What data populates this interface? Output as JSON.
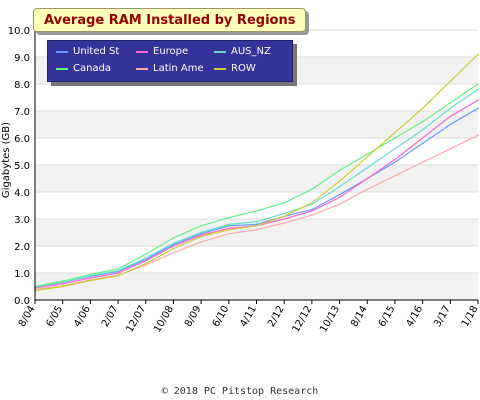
{
  "chart_data": {
    "type": "line",
    "title": "Average RAM Installed by Regions",
    "xlabel": "",
    "ylabel": "Gigabytes (GB)",
    "ylim": [
      0,
      10
    ],
    "y_ticks": [
      "0.0",
      "1.0",
      "2.0",
      "3.0",
      "4.0",
      "5.0",
      "6.0",
      "7.0",
      "8.0",
      "9.0",
      "10.0"
    ],
    "x_ticks": [
      "8/04",
      "6/05",
      "4/06",
      "2/07",
      "12/07",
      "10/08",
      "8/09",
      "6/10",
      "4/11",
      "2/12",
      "12/12",
      "10/13",
      "8/14",
      "6/15",
      "4/16",
      "3/17",
      "1/18"
    ],
    "grid": "horizontal",
    "legend_position": "top-left",
    "colors": {
      "plot_band": "#f2f2f2",
      "grid": "#dddddd",
      "axis": "#000000",
      "title_bg": "#ffffbb",
      "title_text": "#990000",
      "legend_bg": "#333399"
    },
    "series": [
      {
        "name": "United St",
        "color": "#6699ff",
        "values": [
          0.48,
          0.65,
          0.88,
          1.05,
          1.5,
          2.05,
          2.45,
          2.75,
          2.8,
          3.1,
          3.35,
          3.9,
          4.5,
          5.1,
          5.8,
          6.5,
          7.1
        ]
      },
      {
        "name": "Europe",
        "color": "#ff66cc",
        "values": [
          0.45,
          0.6,
          0.82,
          1.0,
          1.45,
          2.0,
          2.4,
          2.65,
          2.75,
          3.0,
          3.3,
          3.8,
          4.5,
          5.2,
          6.0,
          6.8,
          7.4
        ]
      },
      {
        "name": "AUS_NZ",
        "color": "#66ddcc",
        "values": [
          0.48,
          0.65,
          0.9,
          1.08,
          1.55,
          2.1,
          2.5,
          2.8,
          2.9,
          3.2,
          3.55,
          4.2,
          4.9,
          5.6,
          6.3,
          7.1,
          7.8
        ]
      },
      {
        "name": "Canada",
        "color": "#66ee88",
        "values": [
          0.5,
          0.7,
          0.95,
          1.15,
          1.7,
          2.3,
          2.75,
          3.05,
          3.3,
          3.6,
          4.1,
          4.8,
          5.4,
          6.0,
          6.6,
          7.3,
          8.0
        ]
      },
      {
        "name": "Latin Ame",
        "color": "#ffaaaa",
        "values": [
          0.4,
          0.52,
          0.75,
          0.92,
          1.3,
          1.75,
          2.15,
          2.45,
          2.6,
          2.85,
          3.15,
          3.55,
          4.1,
          4.6,
          5.1,
          5.6,
          6.1
        ]
      },
      {
        "name": "ROW",
        "color": "#cccc33",
        "values": [
          0.35,
          0.5,
          0.72,
          0.9,
          1.35,
          1.9,
          2.35,
          2.6,
          2.75,
          3.1,
          3.6,
          4.4,
          5.3,
          6.2,
          7.1,
          8.1,
          9.1
        ]
      }
    ]
  },
  "footer": {
    "copyright": "© 2018 PC Pitstop Research"
  }
}
